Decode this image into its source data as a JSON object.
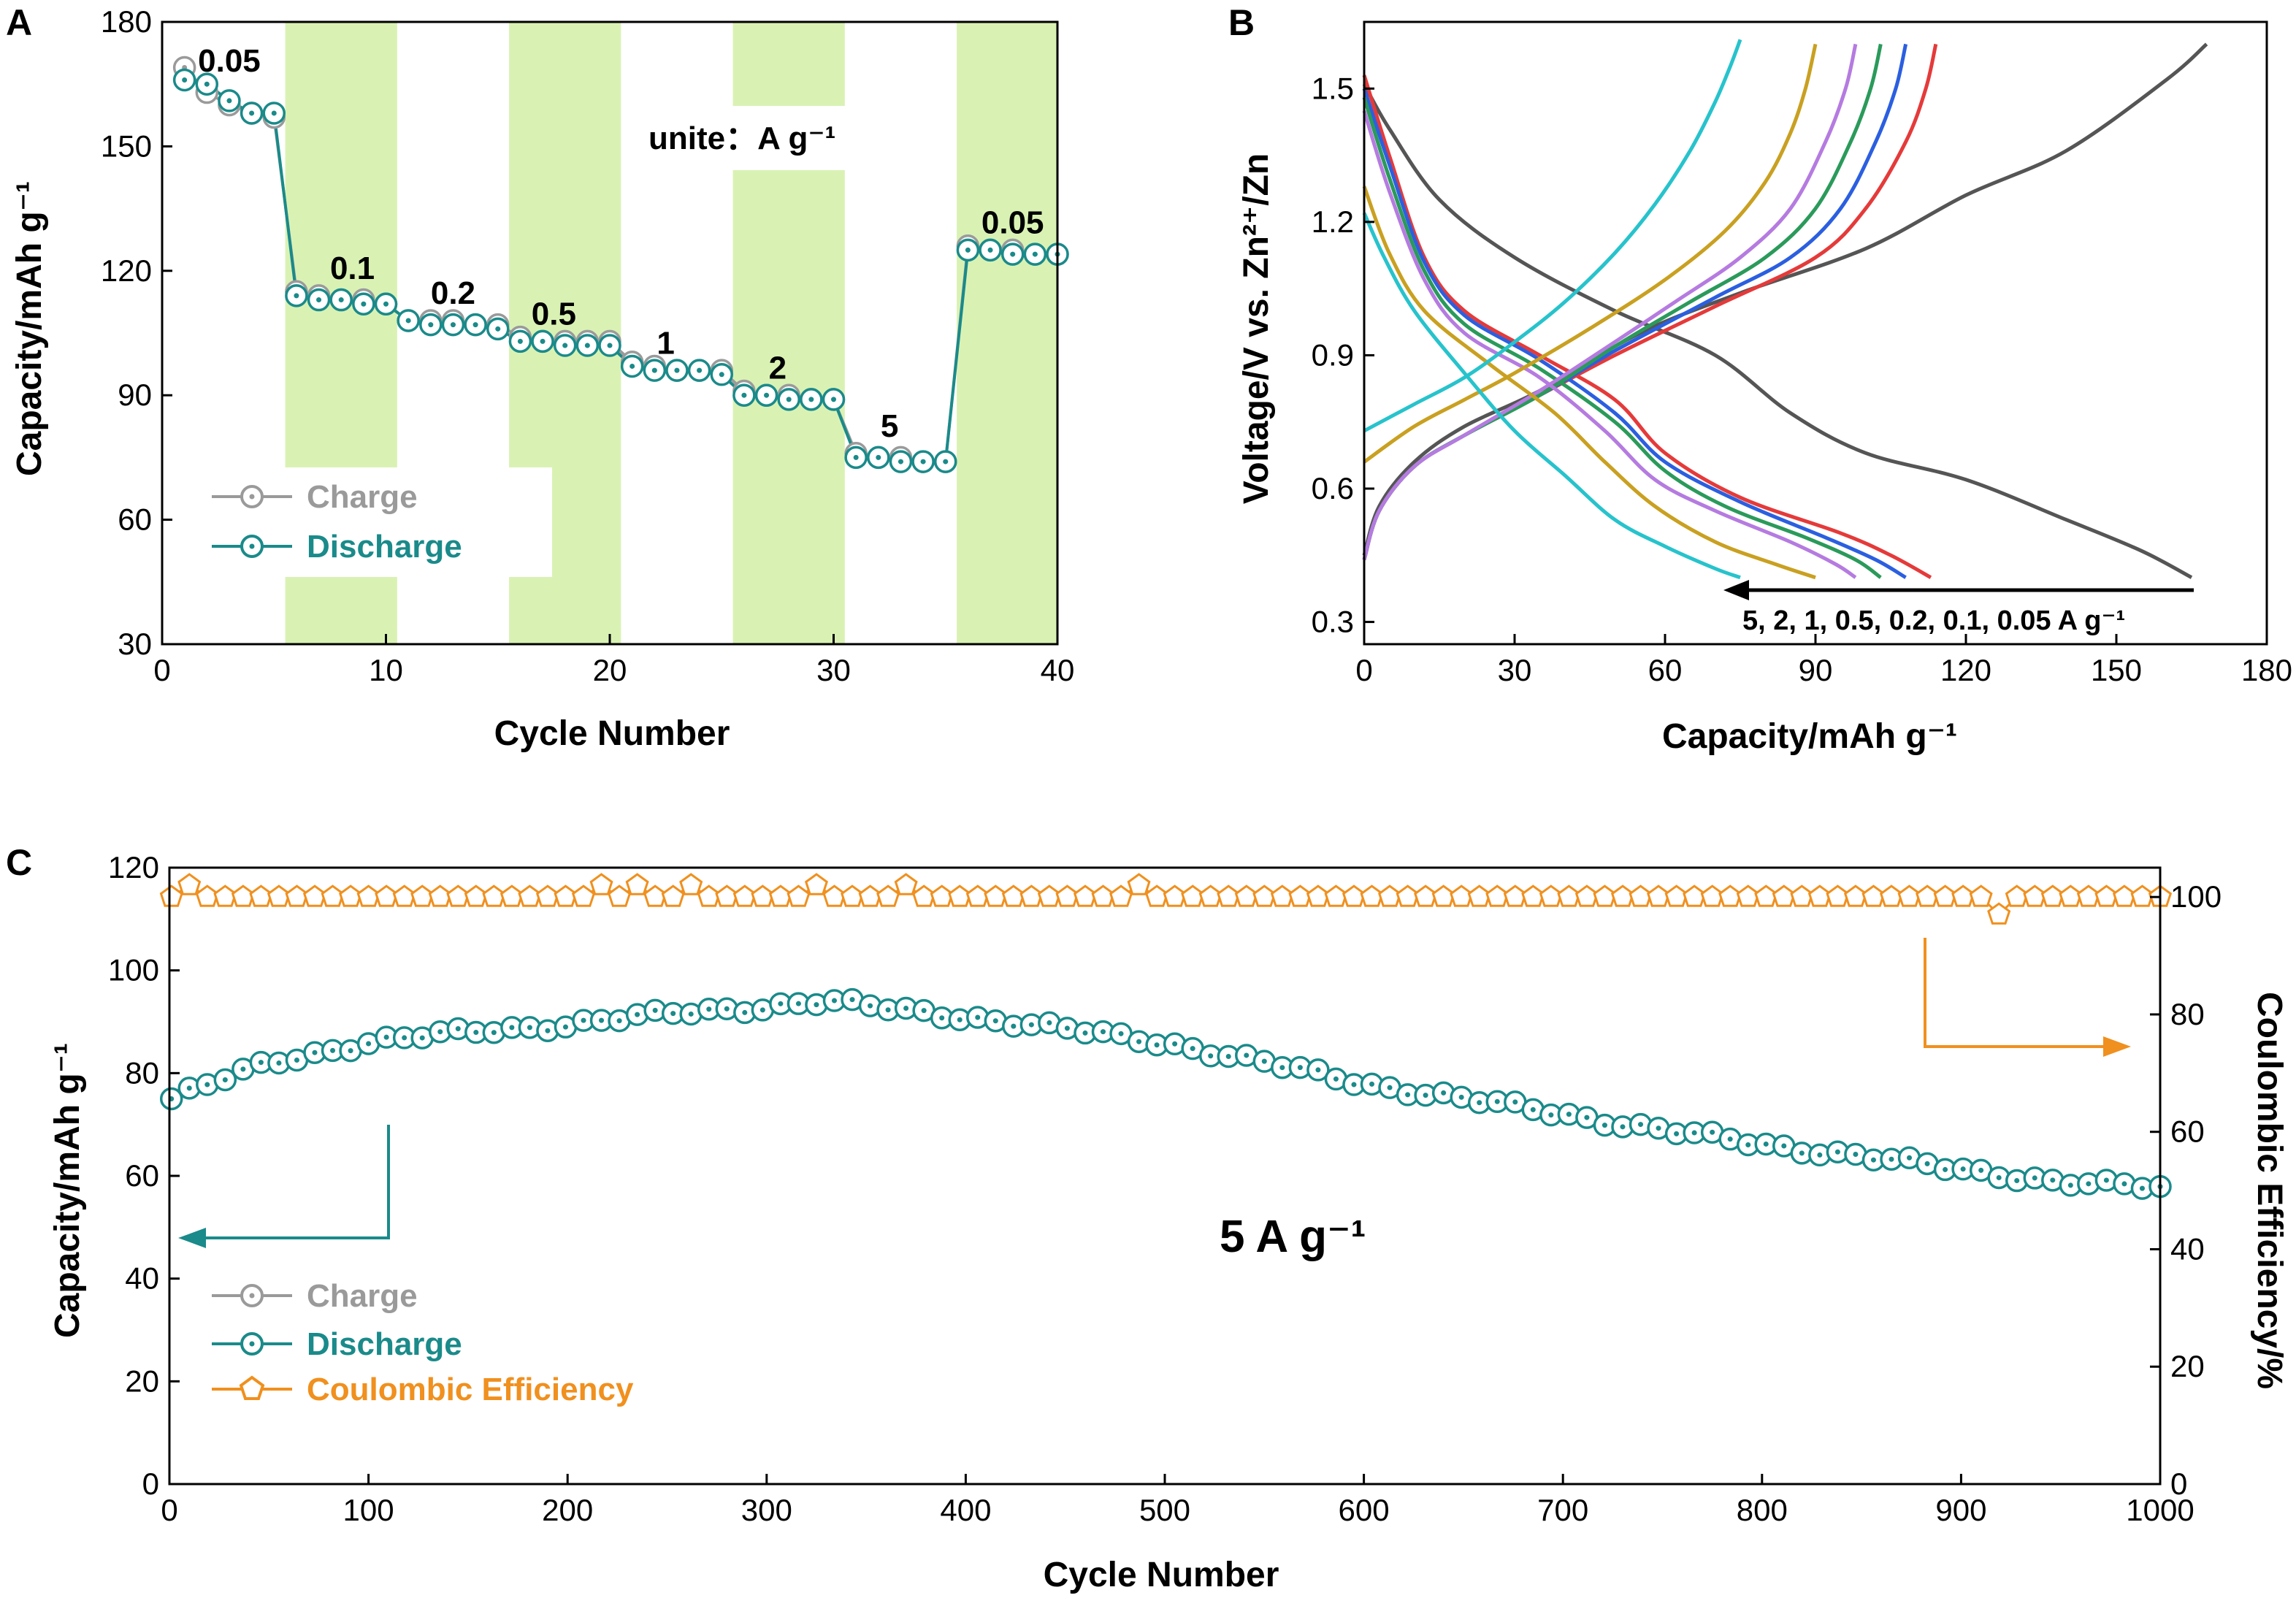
{
  "figure": {
    "panel_letters": [
      "A",
      "B",
      "C"
    ]
  },
  "colors": {
    "teal": "#1a8a8a",
    "gray": "#9a9a9a",
    "orange": "#f0901e",
    "band": "#d9f2b4",
    "axis": "#000000"
  },
  "chart_data": [
    {
      "panel": "A",
      "type": "scatter",
      "xlabel": "Cycle Number",
      "ylabel": "Capacity/mAh g⁻¹",
      "xlim": [
        0,
        40
      ],
      "ylim": [
        30,
        180
      ],
      "xticks": [
        0,
        10,
        20,
        30,
        40
      ],
      "yticks": [
        30,
        60,
        90,
        120,
        150,
        180
      ],
      "unit_note": "unite：A g⁻¹",
      "shaded_cycle_ranges": [
        [
          5.5,
          10.5
        ],
        [
          15.5,
          20.5
        ],
        [
          25.5,
          30.5
        ],
        [
          35.5,
          40.5
        ]
      ],
      "rate_labels": [
        {
          "text": "0.05",
          "x": 3,
          "y": 168
        },
        {
          "text": "0.1",
          "x": 8.5,
          "y": 118
        },
        {
          "text": "0.2",
          "x": 13,
          "y": 112
        },
        {
          "text": "0.5",
          "x": 17.5,
          "y": 107
        },
        {
          "text": "1",
          "x": 22.5,
          "y": 100
        },
        {
          "text": "2",
          "x": 27.5,
          "y": 94
        },
        {
          "text": "5",
          "x": 32.5,
          "y": 80
        },
        {
          "text": "0.05",
          "x": 38,
          "y": 129
        }
      ],
      "x": [
        1,
        2,
        3,
        4,
        5,
        6,
        7,
        8,
        9,
        10,
        11,
        12,
        13,
        14,
        15,
        16,
        17,
        18,
        19,
        20,
        21,
        22,
        23,
        24,
        25,
        26,
        27,
        28,
        29,
        30,
        31,
        32,
        33,
        34,
        35,
        36,
        37,
        38,
        39,
        40
      ],
      "series": [
        {
          "name": "Charge",
          "values": [
            169,
            163,
            160,
            158,
            157,
            115,
            114,
            113,
            113,
            112,
            108,
            108,
            108,
            107,
            107,
            104,
            103,
            103,
            103,
            103,
            98,
            97,
            96,
            96,
            96,
            91,
            90,
            90,
            89,
            89,
            76,
            75,
            75,
            74,
            74,
            126,
            125,
            125,
            124,
            124
          ]
        },
        {
          "name": "Discharge",
          "values": [
            166,
            165,
            161,
            158,
            158,
            114,
            113,
            113,
            112,
            112,
            108,
            107,
            107,
            107,
            106,
            103,
            103,
            102,
            102,
            102,
            97,
            96,
            96,
            96,
            95,
            90,
            90,
            89,
            89,
            89,
            75,
            75,
            74,
            74,
            74,
            125,
            125,
            124,
            124,
            124
          ]
        }
      ],
      "legend": [
        "Charge",
        "Discharge"
      ],
      "legend_position": "bottom-left"
    },
    {
      "panel": "B",
      "type": "line",
      "xlabel": "Capacity/mAh g⁻¹",
      "ylabel": "Voltage/V vs. Zn²⁺/Zn",
      "xlim": [
        0,
        180
      ],
      "ylim": [
        0.25,
        1.65
      ],
      "xticks": [
        0,
        30,
        60,
        90,
        120,
        150,
        180
      ],
      "yticks": [
        0.3,
        0.6,
        0.9,
        1.2,
        1.5
      ],
      "arrow_label": "5, 2, 1, 0.5, 0.2, 0.1, 0.05 A g⁻¹",
      "series": [
        {
          "name": "0.05 A g⁻¹",
          "color": "#555555",
          "charge": [
            [
              0,
              0.45
            ],
            [
              3,
              0.56
            ],
            [
              10,
              0.66
            ],
            [
              20,
              0.74
            ],
            [
              35,
              0.82
            ],
            [
              55,
              0.95
            ],
            [
              75,
              1.04
            ],
            [
              100,
              1.14
            ],
            [
              120,
              1.26
            ],
            [
              140,
              1.36
            ],
            [
              160,
              1.52
            ],
            [
              168,
              1.6
            ]
          ],
          "discharge": [
            [
              0,
              1.51
            ],
            [
              5,
              1.41
            ],
            [
              15,
              1.25
            ],
            [
              30,
              1.12
            ],
            [
              50,
              1.0
            ],
            [
              70,
              0.9
            ],
            [
              85,
              0.77
            ],
            [
              100,
              0.68
            ],
            [
              120,
              0.62
            ],
            [
              140,
              0.53
            ],
            [
              155,
              0.46
            ],
            [
              165,
              0.4
            ]
          ]
        },
        {
          "name": "0.1 A g⁻¹",
          "color": "#e53a3a",
          "charge": [
            [
              0,
              0.44
            ],
            [
              3,
              0.55
            ],
            [
              10,
              0.65
            ],
            [
              20,
              0.72
            ],
            [
              35,
              0.81
            ],
            [
              50,
              0.9
            ],
            [
              70,
              1.01
            ],
            [
              90,
              1.12
            ],
            [
              100,
              1.23
            ],
            [
              108,
              1.38
            ],
            [
              112,
              1.5
            ],
            [
              114,
              1.6
            ]
          ],
          "discharge": [
            [
              0,
              1.53
            ],
            [
              5,
              1.35
            ],
            [
              12,
              1.12
            ],
            [
              20,
              1.0
            ],
            [
              35,
              0.9
            ],
            [
              50,
              0.8
            ],
            [
              60,
              0.68
            ],
            [
              75,
              0.58
            ],
            [
              95,
              0.5
            ],
            [
              105,
              0.45
            ],
            [
              113,
              0.4
            ]
          ]
        },
        {
          "name": "0.2 A g⁻¹",
          "color": "#2b5fe0",
          "charge": [
            [
              0,
              0.44
            ],
            [
              3,
              0.55
            ],
            [
              10,
              0.65
            ],
            [
              20,
              0.72
            ],
            [
              35,
              0.81
            ],
            [
              50,
              0.91
            ],
            [
              70,
              1.03
            ],
            [
              85,
              1.12
            ],
            [
              95,
              1.23
            ],
            [
              102,
              1.38
            ],
            [
              106,
              1.5
            ],
            [
              108,
              1.6
            ]
          ],
          "discharge": [
            [
              0,
              1.5
            ],
            [
              5,
              1.33
            ],
            [
              12,
              1.11
            ],
            [
              20,
              0.99
            ],
            [
              35,
              0.89
            ],
            [
              50,
              0.77
            ],
            [
              60,
              0.66
            ],
            [
              75,
              0.57
            ],
            [
              92,
              0.49
            ],
            [
              102,
              0.44
            ],
            [
              108,
              0.4
            ]
          ]
        },
        {
          "name": "0.5 A g⁻¹",
          "color": "#2a9a5a",
          "charge": [
            [
              0,
              0.44
            ],
            [
              3,
              0.55
            ],
            [
              10,
              0.65
            ],
            [
              20,
              0.72
            ],
            [
              35,
              0.81
            ],
            [
              50,
              0.92
            ],
            [
              65,
              1.02
            ],
            [
              80,
              1.12
            ],
            [
              90,
              1.23
            ],
            [
              97,
              1.38
            ],
            [
              101,
              1.5
            ],
            [
              103,
              1.6
            ]
          ],
          "discharge": [
            [
              0,
              1.48
            ],
            [
              5,
              1.3
            ],
            [
              12,
              1.09
            ],
            [
              20,
              0.97
            ],
            [
              35,
              0.87
            ],
            [
              50,
              0.75
            ],
            [
              60,
              0.64
            ],
            [
              72,
              0.56
            ],
            [
              88,
              0.49
            ],
            [
              98,
              0.44
            ],
            [
              103,
              0.4
            ]
          ]
        },
        {
          "name": "1 A g⁻¹",
          "color": "#b57be0",
          "charge": [
            [
              0,
              0.44
            ],
            [
              3,
              0.55
            ],
            [
              10,
              0.65
            ],
            [
              20,
              0.72
            ],
            [
              35,
              0.82
            ],
            [
              50,
              0.93
            ],
            [
              62,
              1.02
            ],
            [
              75,
              1.12
            ],
            [
              85,
              1.23
            ],
            [
              92,
              1.38
            ],
            [
              96,
              1.5
            ],
            [
              98,
              1.6
            ]
          ],
          "discharge": [
            [
              0,
              1.45
            ],
            [
              5,
              1.27
            ],
            [
              12,
              1.07
            ],
            [
              20,
              0.95
            ],
            [
              35,
              0.85
            ],
            [
              48,
              0.73
            ],
            [
              58,
              0.62
            ],
            [
              70,
              0.55
            ],
            [
              85,
              0.48
            ],
            [
              94,
              0.43
            ],
            [
              98,
              0.4
            ]
          ]
        },
        {
          "name": "2 A g⁻¹",
          "color": "#c9a020",
          "charge": [
            [
              0,
              0.66
            ],
            [
              10,
              0.74
            ],
            [
              20,
              0.8
            ],
            [
              30,
              0.86
            ],
            [
              45,
              0.96
            ],
            [
              60,
              1.07
            ],
            [
              72,
              1.18
            ],
            [
              80,
              1.29
            ],
            [
              85,
              1.4
            ],
            [
              88,
              1.5
            ],
            [
              90,
              1.6
            ]
          ],
          "discharge": [
            [
              0,
              1.28
            ],
            [
              5,
              1.13
            ],
            [
              12,
              1.0
            ],
            [
              25,
              0.88
            ],
            [
              38,
              0.77
            ],
            [
              48,
              0.66
            ],
            [
              58,
              0.56
            ],
            [
              70,
              0.48
            ],
            [
              82,
              0.43
            ],
            [
              90,
              0.4
            ]
          ]
        },
        {
          "name": "5 A g⁻¹",
          "color": "#27c3cc",
          "charge": [
            [
              0,
              0.73
            ],
            [
              10,
              0.79
            ],
            [
              20,
              0.85
            ],
            [
              30,
              0.93
            ],
            [
              40,
              1.02
            ],
            [
              50,
              1.13
            ],
            [
              58,
              1.24
            ],
            [
              65,
              1.36
            ],
            [
              70,
              1.47
            ],
            [
              73,
              1.55
            ],
            [
              75,
              1.61
            ]
          ],
          "discharge": [
            [
              0,
              1.22
            ],
            [
              4,
              1.12
            ],
            [
              10,
              1.0
            ],
            [
              20,
              0.86
            ],
            [
              30,
              0.73
            ],
            [
              40,
              0.63
            ],
            [
              50,
              0.53
            ],
            [
              60,
              0.47
            ],
            [
              70,
              0.42
            ],
            [
              75,
              0.4
            ]
          ]
        }
      ]
    },
    {
      "panel": "C",
      "type": "scatter",
      "xlabel": "Cycle  Number",
      "ylabel": "Capacity/mAh g⁻¹",
      "y2label": "Coulombic Efficiency/%",
      "xlim": [
        0,
        1000
      ],
      "ylim": [
        0,
        120
      ],
      "y2lim": [
        0,
        105
      ],
      "xticks": [
        0,
        100,
        200,
        300,
        400,
        500,
        600,
        700,
        800,
        900,
        1000
      ],
      "yticks": [
        0,
        20,
        40,
        60,
        80,
        100,
        120
      ],
      "y2ticks": [
        0,
        20,
        40,
        60,
        80,
        100
      ],
      "annotation": "5 A g⁻¹",
      "legend": [
        "Charge",
        "Discharge",
        "Coulombic Efficiency"
      ],
      "legend_position": "bottom-left",
      "discharge_trend": {
        "x": [
          1,
          50,
          100,
          150,
          200,
          250,
          300,
          330,
          350,
          400,
          450,
          500,
          550,
          600,
          650,
          700,
          750,
          800,
          850,
          900,
          950,
          1000
        ],
        "values": [
          75,
          82,
          86,
          88,
          89.5,
          91.5,
          93,
          94,
          93,
          91,
          88.5,
          86,
          82,
          78,
          75,
          72,
          69,
          66,
          64,
          61,
          59,
          57.5
        ]
      },
      "coulombic_efficiency": {
        "baseline": 100,
        "spikes": [
          {
            "x": 10,
            "value": 102
          },
          {
            "x": 218,
            "value": 102
          },
          {
            "x": 235,
            "value": 102
          },
          {
            "x": 265,
            "value": 102
          },
          {
            "x": 323,
            "value": 102
          },
          {
            "x": 372,
            "value": 102
          },
          {
            "x": 485,
            "value": 102
          }
        ],
        "dips": [
          {
            "x": 922,
            "value": 97
          }
        ]
      },
      "marker_interval_cycles": 9
    }
  ]
}
